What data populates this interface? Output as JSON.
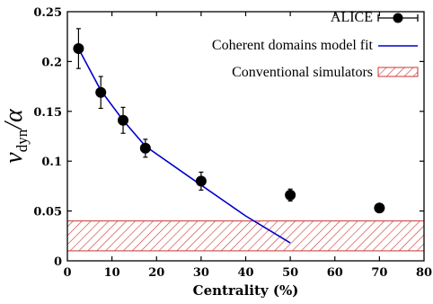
{
  "chart_data": {
    "type": "scatter",
    "xlabel": "Centrality (%)",
    "ylabel": {
      "symbol": "ν",
      "subscript": "dyn",
      "suffix": "/α"
    },
    "xlim": [
      0,
      80
    ],
    "ylim": [
      0,
      0.25
    ],
    "xticks": [
      0,
      10,
      20,
      30,
      40,
      50,
      60,
      70,
      80
    ],
    "yticks": [
      0,
      0.05,
      0.1,
      0.15,
      0.2,
      0.25
    ],
    "xtick_labels": [
      "0",
      "10",
      "20",
      "30",
      "40",
      "50",
      "60",
      "70",
      "80"
    ],
    "ytick_labels": [
      "0",
      "0.05",
      "0.1",
      "0.15",
      "0.2",
      "0.25"
    ],
    "grid": false,
    "legend_position": "top-right",
    "series": [
      {
        "name": "ALICE",
        "kind": "points-with-errorbars",
        "color": "#000000",
        "x": [
          2.5,
          7.5,
          12.5,
          17.5,
          30,
          50,
          70
        ],
        "y": [
          0.213,
          0.169,
          0.141,
          0.113,
          0.08,
          0.066,
          0.053
        ],
        "yerr": [
          0.02,
          0.016,
          0.013,
          0.009,
          0.009,
          0.006,
          0.004
        ]
      },
      {
        "name": "Coherent domains model fit",
        "kind": "line",
        "color": "#0000cc",
        "x": [
          2.5,
          7.5,
          12.5,
          17.5,
          30,
          40,
          50
        ],
        "y": [
          0.213,
          0.171,
          0.141,
          0.115,
          0.076,
          0.045,
          0.018
        ]
      },
      {
        "name": "Conventional simulators",
        "kind": "band",
        "color": "#cc3333",
        "x": [
          0,
          80
        ],
        "y_low": 0.01,
        "y_high": 0.04
      }
    ]
  }
}
